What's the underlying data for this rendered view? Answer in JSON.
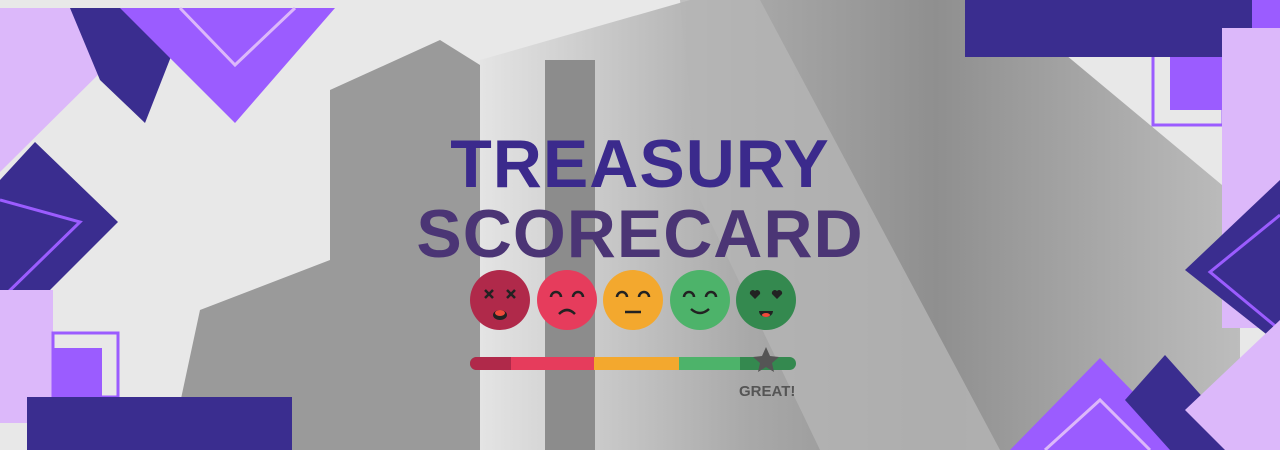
{
  "title": {
    "line1": "TREASURY",
    "line2": "SCORECARD"
  },
  "faces": [
    {
      "icon": "dizzy-face-icon",
      "color": "#b0294a"
    },
    {
      "icon": "sad-face-icon",
      "color": "#e63c5c"
    },
    {
      "icon": "neutral-face-icon",
      "color": "#f3a82e"
    },
    {
      "icon": "smile-face-icon",
      "color": "#4db36a"
    },
    {
      "icon": "heart-eyes-face-icon",
      "color": "#34894f"
    }
  ],
  "rating": {
    "label": "GREAT!",
    "marker_icon": "star-icon",
    "level_percent": 90
  },
  "colors": {
    "navy": "#3a2d8f",
    "purple": "#9b5cff",
    "lavender": "#dcb8fa"
  }
}
